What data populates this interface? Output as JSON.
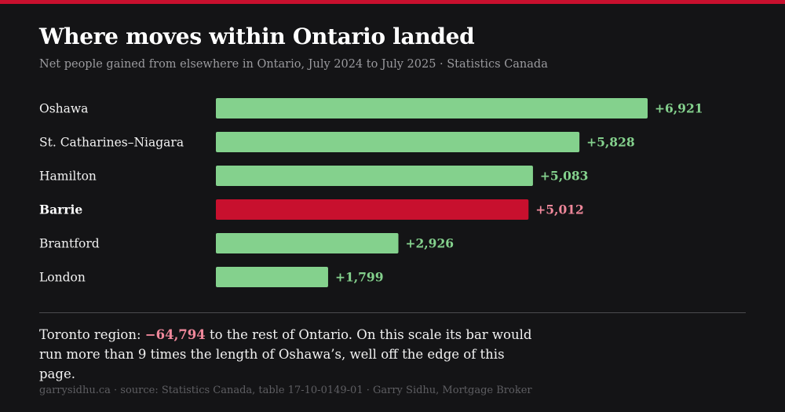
{
  "title": "Where moves within Ontario landed",
  "subtitle": "Net people gained from elsewhere in Ontario, July 2024 to July 2025 · Statistics Canada",
  "colors": {
    "accent": "#c8102e",
    "bar": "#84d18d",
    "highlight_bar": "#c8102e",
    "highlight_text": "#f0889b",
    "background": "#141416"
  },
  "chart_data": {
    "type": "bar",
    "orientation": "horizontal",
    "categories": [
      "Oshawa",
      "St. Catharines–Niagara",
      "Hamilton",
      "Barrie",
      "Brantford",
      "London"
    ],
    "values": [
      6921,
      5828,
      5083,
      5012,
      2926,
      1799
    ],
    "value_labels": [
      "+6,921",
      "+5,828",
      "+5,083",
      "+5,012",
      "+2,926",
      "+1,799"
    ],
    "highlight": "Barrie",
    "xlim": [
      0,
      6921
    ],
    "grid": false,
    "legend": "none"
  },
  "note": {
    "prefix": "Toronto region: ",
    "value": "−64,794",
    "suffix": " to the rest of Ontario. On this scale its bar would run more than 9 times the length of Oshawa’s, well off the edge of this page."
  },
  "footer": "garrysidhu.ca · source: Statistics Canada, table 17-10-0149-01 · Garry Sidhu, Mortgage Broker"
}
